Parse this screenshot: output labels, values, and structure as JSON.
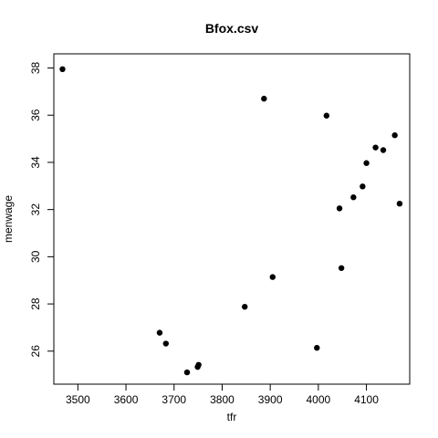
{
  "chart_data": {
    "type": "scatter",
    "title": "Bfox.csv",
    "xlabel": "tfr",
    "ylabel": "menwage",
    "xlim": [
      3450,
      4190
    ],
    "ylim": [
      24.6,
      38.6
    ],
    "xticks": [
      3500,
      3600,
      3700,
      3800,
      3900,
      4000,
      4100
    ],
    "yticks": [
      26,
      28,
      30,
      32,
      34,
      36,
      38
    ],
    "grid": false,
    "legend": "none",
    "point_color": "#000000",
    "points": [
      {
        "x": 3468,
        "y": 37.95
      },
      {
        "x": 3887,
        "y": 36.7
      },
      {
        "x": 4017,
        "y": 35.98
      },
      {
        "x": 4159,
        "y": 35.15
      },
      {
        "x": 4119,
        "y": 34.63
      },
      {
        "x": 4135,
        "y": 34.52
      },
      {
        "x": 4100,
        "y": 33.97
      },
      {
        "x": 4092,
        "y": 32.98
      },
      {
        "x": 4073,
        "y": 32.52
      },
      {
        "x": 4169,
        "y": 32.25
      },
      {
        "x": 4044,
        "y": 32.05
      },
      {
        "x": 4048,
        "y": 29.52
      },
      {
        "x": 3905,
        "y": 29.14
      },
      {
        "x": 3847,
        "y": 27.88
      },
      {
        "x": 3670,
        "y": 26.78
      },
      {
        "x": 3683,
        "y": 26.32
      },
      {
        "x": 3997,
        "y": 26.14
      },
      {
        "x": 3751,
        "y": 25.42
      },
      {
        "x": 3749,
        "y": 25.33
      },
      {
        "x": 3727,
        "y": 25.1
      }
    ]
  }
}
